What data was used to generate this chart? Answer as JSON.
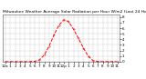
{
  "title": "Milwaukee Weather Average Solar Radiation per Hour W/m2 (Last 24 Hours)",
  "title_fontsize": 3.2,
  "x_labels": [
    "12a",
    "1",
    "2",
    "3",
    "4",
    "5",
    "6",
    "7",
    "8",
    "9",
    "10",
    "11",
    "12p",
    "1",
    "2",
    "3",
    "4",
    "5",
    "6",
    "7",
    "8",
    "9",
    "10",
    "11"
  ],
  "y_ticks": [
    0,
    1,
    2,
    3,
    4,
    5,
    6,
    7,
    8
  ],
  "ylim": [
    0,
    8.5
  ],
  "xlim": [
    -0.5,
    23.5
  ],
  "line_color": "#ff0000",
  "line_style": "--",
  "line_width": 0.7,
  "marker_size": 0.6,
  "bg_color": "#ffffff",
  "plot_bg_color": "#ffffff",
  "grid_color": "#999999",
  "grid_style": "--",
  "tick_fontsize": 3.0,
  "solar_data": [
    0,
    0,
    0,
    0,
    0,
    0,
    0.05,
    0.3,
    1.2,
    2.8,
    4.8,
    6.5,
    7.5,
    7.2,
    5.8,
    4.2,
    2.5,
    1.0,
    0.2,
    0.05,
    0,
    0,
    0,
    0
  ]
}
